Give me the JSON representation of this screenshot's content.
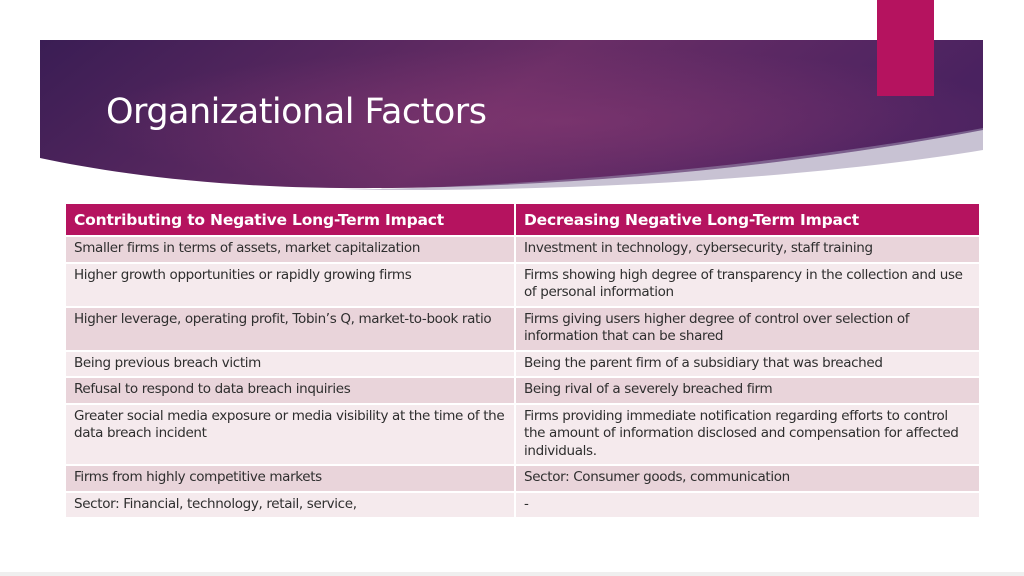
{
  "slide": {
    "title": "Organizational Factors",
    "colors": {
      "banner_dark": "#3a1d54",
      "banner_mid": "#6a2e66",
      "accent": "#b5135f",
      "row_odd": "#e9d4da",
      "row_even": "#f5eaed"
    }
  },
  "table": {
    "headers": [
      "Contributing to Negative Long-Term Impact",
      "Decreasing Negative Long-Term Impact"
    ],
    "rows": [
      [
        "Smaller firms in terms of assets, market capitalization",
        "Investment in technology, cybersecurity, staff training"
      ],
      [
        "Higher growth opportunities or rapidly growing firms",
        "Firms showing high degree of transparency in the collection and use of personal information"
      ],
      [
        "Higher leverage, operating profit, Tobin’s Q, market-to-book ratio",
        "Firms giving users higher degree of control over selection of information that can be shared"
      ],
      [
        "Being previous breach victim",
        "Being the parent firm of a subsidiary that was breached"
      ],
      [
        "Refusal to respond to data breach inquiries",
        "Being rival of a severely breached firm"
      ],
      [
        "Greater social media exposure or media visibility at the time of the data breach incident",
        "Firms providing immediate notification regarding efforts to control the amount of information disclosed and compensation for affected individuals."
      ],
      [
        "Firms from highly competitive markets",
        "Sector: Consumer goods, communication"
      ],
      [
        "Sector: Financial, technology, retail, service,",
        "-"
      ]
    ]
  }
}
